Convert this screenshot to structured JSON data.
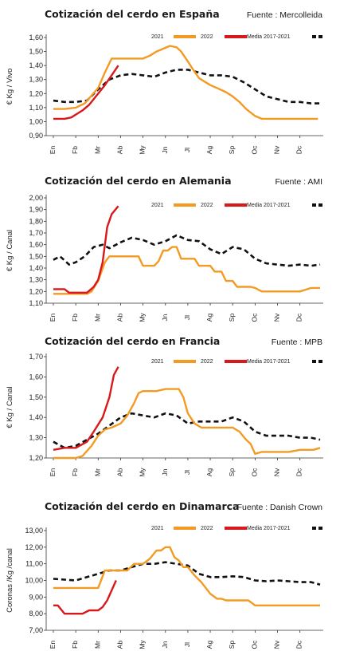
{
  "chart_data": [
    {
      "type": "line",
      "title": "Cotización del cerdo en España",
      "source": "Fuente : Mercolleida",
      "ylabel": "€ Kg / Vivo",
      "ylim": [
        0.9,
        1.6
      ],
      "yticks": [
        "1,60",
        "1,50",
        "1,40",
        "1,30",
        "1,20",
        "1,10",
        "1,00",
        "0,90"
      ],
      "categories": [
        "En",
        "Fb",
        "Mr",
        "Ab",
        "My",
        "Jn",
        "Jl",
        "Ag",
        "Sp",
        "Oc",
        "Nv",
        "Dc"
      ],
      "legend": [
        "2021",
        "2022",
        "Media 2017-2021"
      ],
      "series": [
        {
          "name": "2021",
          "color": "#F39A23",
          "style": "solid",
          "x": [
            0,
            0.5,
            1,
            1.4,
            2,
            2.3,
            2.6,
            3,
            3.5,
            4,
            4.3,
            4.6,
            4.9,
            5.2,
            5.5,
            5.7,
            6,
            6.2,
            6.5,
            6.8,
            7,
            7.3,
            7.7,
            8,
            8.3,
            8.6,
            9,
            9.3,
            9.6,
            10,
            10.5,
            11,
            11.5,
            11.8
          ],
          "y": [
            1.09,
            1.09,
            1.1,
            1.13,
            1.24,
            1.35,
            1.45,
            1.45,
            1.45,
            1.45,
            1.47,
            1.5,
            1.52,
            1.54,
            1.53,
            1.5,
            1.43,
            1.38,
            1.31,
            1.28,
            1.26,
            1.24,
            1.21,
            1.18,
            1.14,
            1.09,
            1.04,
            1.02,
            1.02,
            1.02,
            1.02,
            1.02,
            1.02,
            1.02
          ]
        },
        {
          "name": "2022",
          "color": "#D7191C",
          "style": "solid",
          "x": [
            0,
            0.5,
            0.8,
            1,
            1.3,
            1.6,
            2,
            2.3,
            2.6,
            2.9
          ],
          "y": [
            1.02,
            1.02,
            1.03,
            1.05,
            1.08,
            1.12,
            1.2,
            1.26,
            1.33,
            1.4
          ]
        },
        {
          "name": "Media 2017-2021",
          "color": "#111111",
          "style": "dashed",
          "x": [
            0,
            0.5,
            1,
            1.5,
            2,
            2.5,
            3,
            3.5,
            4,
            4.5,
            5,
            5.5,
            6,
            6.5,
            7,
            7.5,
            8,
            8.5,
            9,
            9.5,
            10,
            10.5,
            11,
            11.5,
            11.9
          ],
          "y": [
            1.15,
            1.14,
            1.14,
            1.15,
            1.23,
            1.3,
            1.33,
            1.34,
            1.33,
            1.32,
            1.35,
            1.37,
            1.37,
            1.35,
            1.33,
            1.33,
            1.32,
            1.28,
            1.23,
            1.18,
            1.16,
            1.14,
            1.14,
            1.13,
            1.13
          ]
        }
      ]
    },
    {
      "type": "line",
      "title": "Cotización del cerdo en Alemania",
      "source": "Fuente : AMI",
      "ylabel": "€ Kg / Canal",
      "ylim": [
        1.1,
        2.0
      ],
      "yticks": [
        "2,00",
        "1,90",
        "1,80",
        "1,70",
        "1,60",
        "1,50",
        "1,40",
        "1,30",
        "1,20",
        "1,10"
      ],
      "categories": [
        "En",
        "Fb",
        "Mr",
        "Ab",
        "My",
        "Jn",
        "Jl",
        "Ag",
        "Sp",
        "Oc",
        "Nv",
        "Dc"
      ],
      "legend": [
        "2021",
        "2022",
        "Media 2017-2021"
      ],
      "series": [
        {
          "name": "2021",
          "color": "#F39A23",
          "style": "solid",
          "x": [
            0,
            0.5,
            1,
            1.5,
            1.7,
            2,
            2.3,
            2.5,
            3,
            3.5,
            3.8,
            4,
            4.2,
            4.5,
            4.7,
            4.9,
            5.1,
            5.3,
            5.5,
            5.7,
            6,
            6.3,
            6.5,
            6.7,
            7,
            7.2,
            7.5,
            7.7,
            8,
            8.2,
            8.5,
            8.8,
            9,
            9.3,
            9.5,
            10,
            10.5,
            11,
            11.5,
            11.9
          ],
          "y": [
            1.18,
            1.18,
            1.18,
            1.18,
            1.2,
            1.29,
            1.45,
            1.5,
            1.5,
            1.5,
            1.5,
            1.42,
            1.42,
            1.42,
            1.46,
            1.55,
            1.55,
            1.58,
            1.58,
            1.48,
            1.48,
            1.48,
            1.42,
            1.42,
            1.42,
            1.37,
            1.37,
            1.29,
            1.29,
            1.24,
            1.24,
            1.24,
            1.23,
            1.2,
            1.2,
            1.2,
            1.2,
            1.2,
            1.23,
            1.23
          ]
        },
        {
          "name": "2022",
          "color": "#D7191C",
          "style": "solid",
          "x": [
            0,
            0.5,
            0.7,
            1,
            1.5,
            1.8,
            2,
            2.2,
            2.4,
            2.6,
            2.9
          ],
          "y": [
            1.22,
            1.22,
            1.19,
            1.19,
            1.19,
            1.24,
            1.3,
            1.45,
            1.75,
            1.86,
            1.93
          ]
        },
        {
          "name": "Media 2017-2021",
          "color": "#111111",
          "style": "dashed",
          "x": [
            0,
            0.3,
            0.7,
            1,
            1.4,
            1.8,
            2.2,
            2.5,
            3,
            3.5,
            4,
            4.5,
            5,
            5.5,
            6,
            6.5,
            7,
            7.5,
            8,
            8.5,
            9,
            9.5,
            10,
            10.5,
            11,
            11.5,
            11.9
          ],
          "y": [
            1.47,
            1.5,
            1.43,
            1.45,
            1.5,
            1.58,
            1.6,
            1.57,
            1.62,
            1.66,
            1.64,
            1.6,
            1.63,
            1.68,
            1.64,
            1.63,
            1.56,
            1.52,
            1.58,
            1.56,
            1.48,
            1.44,
            1.43,
            1.42,
            1.43,
            1.42,
            1.43
          ]
        }
      ]
    },
    {
      "type": "line",
      "title": "Cotización del cerdo en Francia",
      "source": "Fuente : MPB",
      "ylabel": "€ Kg / Canal",
      "ylim": [
        1.2,
        1.7
      ],
      "yticks": [
        "1,70",
        "1,60",
        "1,50",
        "1,40",
        "1,30",
        "1,20"
      ],
      "categories": [
        "En",
        "Fb",
        "Mr",
        "Ab",
        "My",
        "Jn",
        "Jl",
        "Ag",
        "Sp",
        "Oc",
        "Nv",
        "Dc"
      ],
      "legend": [
        "2021",
        "2022",
        "Media 2017-2021"
      ],
      "series": [
        {
          "name": "2021",
          "color": "#F39A23",
          "style": "solid",
          "x": [
            0,
            0.5,
            1,
            1.3,
            1.7,
            2,
            2.3,
            2.6,
            3,
            3.3,
            3.6,
            3.8,
            4,
            4.3,
            4.6,
            5,
            5.3,
            5.6,
            5.8,
            6,
            6.3,
            6.6,
            7,
            7.5,
            8,
            8.3,
            8.6,
            8.8,
            9,
            9.3,
            9.6,
            10,
            10.5,
            11,
            11.3,
            11.6,
            11.9
          ],
          "y": [
            1.2,
            1.2,
            1.2,
            1.21,
            1.26,
            1.31,
            1.34,
            1.35,
            1.37,
            1.41,
            1.47,
            1.52,
            1.53,
            1.53,
            1.53,
            1.54,
            1.54,
            1.54,
            1.5,
            1.42,
            1.37,
            1.35,
            1.35,
            1.35,
            1.35,
            1.33,
            1.29,
            1.27,
            1.22,
            1.23,
            1.23,
            1.23,
            1.23,
            1.24,
            1.24,
            1.24,
            1.25
          ]
        },
        {
          "name": "2022",
          "color": "#D7191C",
          "style": "solid",
          "x": [
            0,
            0.5,
            1,
            1.5,
            1.8,
            2.2,
            2.5,
            2.7,
            2.9
          ],
          "y": [
            1.24,
            1.25,
            1.25,
            1.28,
            1.33,
            1.4,
            1.5,
            1.61,
            1.65
          ]
        },
        {
          "name": "Media 2017-2021",
          "color": "#111111",
          "style": "dashed",
          "x": [
            0,
            0.5,
            1,
            1.5,
            2,
            2.5,
            3,
            3.5,
            4,
            4.5,
            5,
            5.5,
            6,
            6.5,
            7,
            7.5,
            8,
            8.5,
            9,
            9.5,
            10,
            10.5,
            11,
            11.5,
            11.9
          ],
          "y": [
            1.28,
            1.25,
            1.26,
            1.29,
            1.32,
            1.36,
            1.4,
            1.42,
            1.41,
            1.4,
            1.42,
            1.41,
            1.37,
            1.38,
            1.38,
            1.38,
            1.4,
            1.38,
            1.33,
            1.31,
            1.31,
            1.31,
            1.3,
            1.3,
            1.29
          ]
        }
      ]
    },
    {
      "type": "line",
      "title": "Cotización del cerdo en Dinamarca",
      "source": "Fuente : Danish Crown",
      "ylabel": "Coronas /Kg /canal",
      "ylim": [
        7.0,
        13.0
      ],
      "yticks": [
        "13,00",
        "12,00",
        "11,00",
        "10,00",
        "9,00",
        "8,00",
        "7,00"
      ],
      "categories": [
        "En",
        "Fb",
        "Mr",
        "Ab",
        "My",
        "Jn",
        "Jl",
        "Ag",
        "Sp",
        "Oc",
        "Nv",
        "Dc"
      ],
      "legend": [
        "2021",
        "2022",
        "Media 2017-2021"
      ],
      "series": [
        {
          "name": "2021",
          "color": "#F39A23",
          "style": "solid",
          "x": [
            0,
            0.5,
            1,
            1.5,
            1.8,
            2,
            2.3,
            2.6,
            3,
            3.3,
            3.6,
            4,
            4.3,
            4.6,
            4.8,
            5,
            5.2,
            5.4,
            5.6,
            5.8,
            6,
            6.3,
            6.6,
            7,
            7.3,
            7.5,
            7.7,
            8,
            8.3,
            8.7,
            9,
            9.2,
            9.5,
            10,
            10.5,
            11,
            11.5,
            11.9
          ],
          "y": [
            9.55,
            9.55,
            9.55,
            9.55,
            9.55,
            9.55,
            10.6,
            10.6,
            10.6,
            10.6,
            11,
            11,
            11.3,
            11.8,
            11.8,
            12,
            12,
            11.4,
            11.2,
            10.8,
            10.8,
            10.3,
            9.9,
            9.2,
            8.9,
            8.9,
            8.8,
            8.8,
            8.8,
            8.8,
            8.5,
            8.5,
            8.5,
            8.5,
            8.5,
            8.5,
            8.5,
            8.5
          ]
        },
        {
          "name": "2022",
          "color": "#D7191C",
          "style": "solid",
          "x": [
            0,
            0.2,
            0.5,
            1,
            1.3,
            1.6,
            2,
            2.2,
            2.4,
            2.6,
            2.8
          ],
          "y": [
            8.5,
            8.5,
            8.0,
            8.0,
            8.0,
            8.2,
            8.2,
            8.4,
            8.8,
            9.4,
            10.0
          ]
        },
        {
          "name": "Media 2017-2021",
          "color": "#111111",
          "style": "dashed",
          "x": [
            0,
            0.5,
            1,
            1.5,
            2,
            2.5,
            3,
            3.5,
            4,
            4.5,
            5,
            5.5,
            6,
            6.5,
            7,
            7.5,
            8,
            8.5,
            9,
            9.5,
            10,
            10.5,
            11,
            11.5,
            11.9
          ],
          "y": [
            10.1,
            10.05,
            10.0,
            10.2,
            10.4,
            10.6,
            10.6,
            10.8,
            11.0,
            11.0,
            11.1,
            11.0,
            10.9,
            10.4,
            10.2,
            10.2,
            10.25,
            10.2,
            10.0,
            9.95,
            10.0,
            9.95,
            9.9,
            9.9,
            9.75
          ]
        }
      ]
    }
  ]
}
